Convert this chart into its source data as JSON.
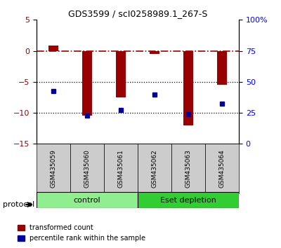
{
  "title": "GDS3599 / scI0258989.1_267-S",
  "samples": [
    "GSM435059",
    "GSM435060",
    "GSM435061",
    "GSM435062",
    "GSM435063",
    "GSM435064"
  ],
  "red_values": [
    0.8,
    -10.5,
    -7.5,
    -0.5,
    -12.0,
    -5.5
  ],
  "blue_values": [
    -6.5,
    -10.5,
    -9.5,
    -7.0,
    -10.2,
    -8.5
  ],
  "ylim_left": [
    -15,
    5
  ],
  "ylim_right": [
    0,
    100
  ],
  "yticks_left": [
    -15,
    -10,
    -5,
    0,
    5
  ],
  "yticks_right": [
    0,
    25,
    50,
    75,
    100
  ],
  "ytick_labels_right": [
    "0",
    "25",
    "50",
    "75",
    "100%"
  ],
  "hlines": [
    -5,
    -10
  ],
  "dashed_line_y": 0,
  "bar_color": "#990000",
  "dot_color": "#000099",
  "control_label": "control",
  "depletion_label": "Eset depletion",
  "protocol_label": "protocol",
  "legend_red": "transformed count",
  "legend_blue": "percentile rank within the sample",
  "control_color": "#90ee90",
  "depletion_color": "#32cd32",
  "tick_box_color": "#cccccc",
  "bar_width": 0.3
}
